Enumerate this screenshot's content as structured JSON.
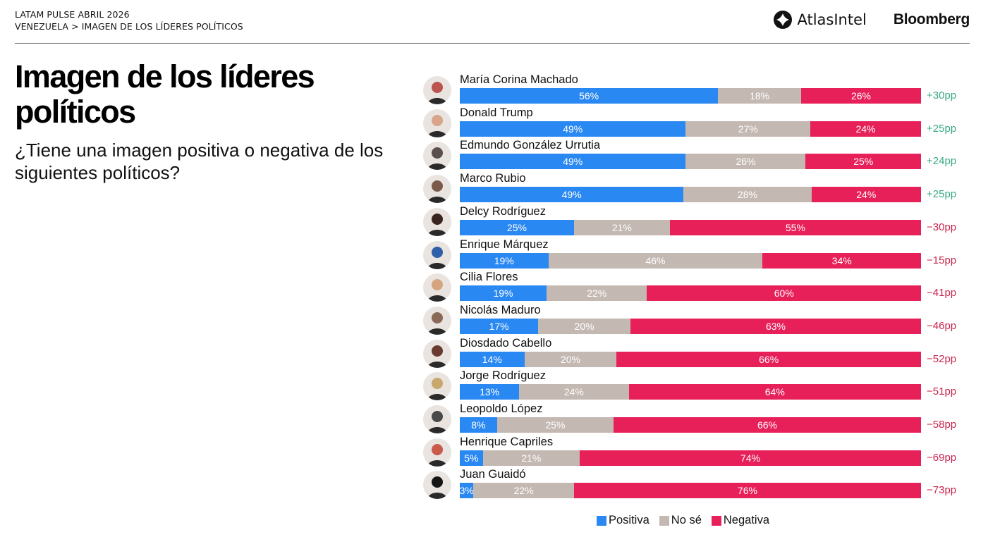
{
  "header": {
    "kicker": "LATAM PULSE ABRIL 2026",
    "breadcrumb": "VENEZUELA > IMAGEN DE LOS LÍDERES POLÍTICOS"
  },
  "logos": {
    "atlas": "AtlasIntel",
    "bloomberg": "Bloomberg"
  },
  "title": "Imagen de los líderes políticos",
  "subtitle": "¿Tiene una imagen positiva o negativa de los siguientes políticos?",
  "colors": {
    "positiva": "#2a88f2",
    "no_se": "#c4b8b2",
    "negativa": "#e8205a",
    "net_positive": "#3aa886",
    "net_negative": "#c8264f"
  },
  "chart_data": {
    "type": "bar",
    "orientation": "horizontal-stacked-100",
    "title": "Imagen de los líderes políticos",
    "subtitle": "¿Tiene una imagen positiva o negativa de los siguientes políticos?",
    "xlim": [
      0,
      100
    ],
    "unit": "%",
    "legend": {
      "position": "bottom",
      "entries": [
        "Positiva",
        "No sé",
        "Negativa"
      ]
    },
    "categories": [
      "María Corina Machado",
      "Donald Trump",
      "Edmundo González Urrutia",
      "Marco Rubio",
      "Delcy Rodríguez",
      "Enrique Márquez",
      "Cilia Flores",
      "Nicolás Maduro",
      "Diosdado Cabello",
      "Jorge Rodríguez",
      "Leopoldo López",
      "Henrique Capriles",
      "Juan Guaidó"
    ],
    "series": [
      {
        "name": "Positiva",
        "values": [
          56,
          49,
          49,
          49,
          25,
          19,
          19,
          17,
          14,
          13,
          8,
          5,
          3
        ]
      },
      {
        "name": "No sé",
        "values": [
          18,
          27,
          26,
          28,
          21,
          46,
          22,
          20,
          20,
          24,
          25,
          21,
          22
        ]
      },
      {
        "name": "Negativa",
        "values": [
          26,
          24,
          25,
          24,
          55,
          34,
          60,
          63,
          66,
          64,
          66,
          74,
          76
        ]
      }
    ],
    "net_labels": [
      "+30pp",
      "+25pp",
      "+24pp",
      "+25pp",
      "-30pp",
      -15,
      "-41pp",
      "-46pp",
      "-52pp",
      "-51pp",
      "-58pp",
      "-69pp",
      "-73pp"
    ],
    "net_values": [
      30,
      25,
      24,
      25,
      -30,
      -15,
      -41,
      -46,
      -52,
      -51,
      -58,
      -69,
      -73
    ]
  }
}
